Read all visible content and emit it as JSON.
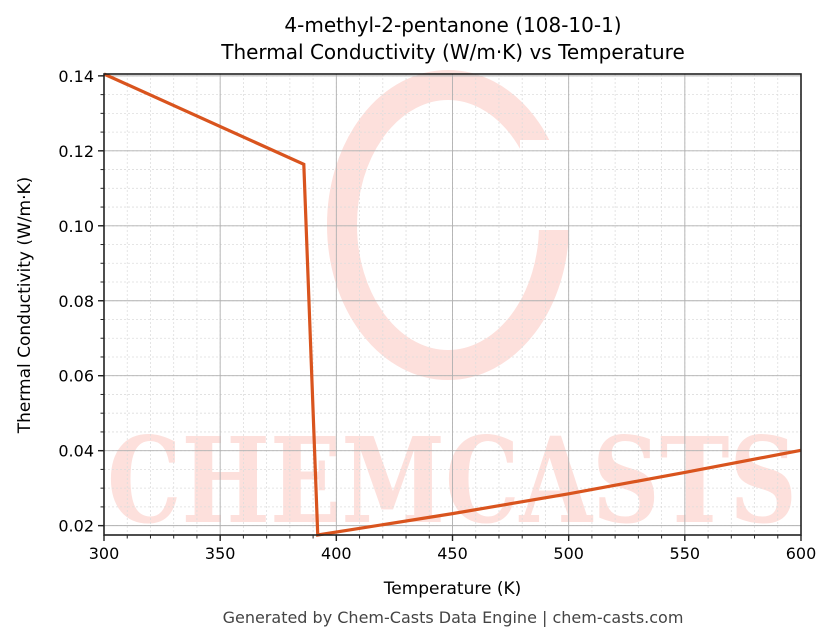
{
  "title_line1": "4-methyl-2-pentanone (108-10-1)",
  "title_line2": "Thermal Conductivity (W/m·K) vs Temperature",
  "footer": "Generated by Chem-Casts Data Engine | chem-casts.com",
  "watermark": "CHEMCASTS",
  "colors": {
    "line": "#d9541e",
    "watermark": "#fde0dc",
    "major_grid": "#b0b0b0",
    "minor_grid": "#dddddd",
    "axis": "#222222"
  },
  "chart_data": {
    "type": "line",
    "title": "4-methyl-2-pentanone (108-10-1) Thermal Conductivity (W/m·K) vs Temperature",
    "xlabel": "Temperature (K)",
    "ylabel": "Thermal Conductivity (W/m·K)",
    "xlim": [
      300,
      600
    ],
    "ylim": [
      0.0175,
      0.1405
    ],
    "xticks": [
      300,
      350,
      400,
      450,
      500,
      550,
      600
    ],
    "xtick_labels": [
      "300",
      "350",
      "400",
      "450",
      "500",
      "550",
      "600"
    ],
    "yticks": [
      0.02,
      0.04,
      0.06,
      0.08,
      0.1,
      0.12,
      0.14
    ],
    "ytick_labels": [
      "0.02",
      "0.04",
      "0.06",
      "0.08",
      "0.10",
      "0.12",
      "0.14"
    ],
    "grid": true,
    "minor_grid": true,
    "legend": null,
    "series": [
      {
        "name": "Thermal Conductivity",
        "x": [
          300,
          386,
          392,
          450,
          500,
          550,
          600
        ],
        "y": [
          0.1405,
          0.1164,
          0.0175,
          0.0232,
          0.0285,
          0.0342,
          0.0401
        ]
      }
    ]
  }
}
